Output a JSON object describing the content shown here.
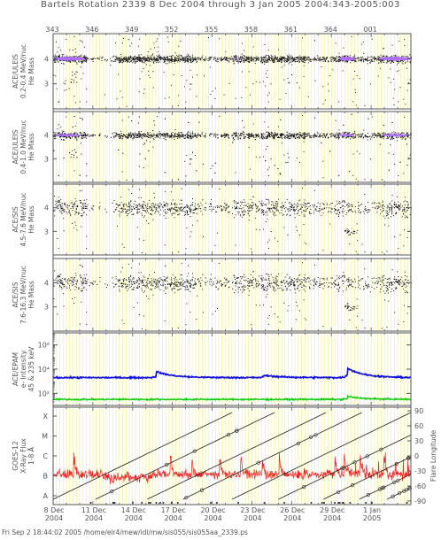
{
  "title": "Bartels Rotation 2339    8 Dec 2004 through 3 Jan 2005    2004:343-2005:003",
  "footer": "Fri Sep  2 18:44:02 2005    /home/elr4/mew/idl/mw/sis055/sis055aa_2339.ps",
  "doy_ticks": [
    "343",
    "346",
    "349",
    "352",
    "355",
    "358",
    "361",
    "364",
    "001"
  ],
  "date_ticks": [
    {
      "day": "8 Dec",
      "year": "2004"
    },
    {
      "day": "11 Dec",
      "year": "2004"
    },
    {
      "day": "14 Dec",
      "year": "2004"
    },
    {
      "day": "17 Dec",
      "year": "2004"
    },
    {
      "day": "20 Dec",
      "year": "2004"
    },
    {
      "day": "23 Dec",
      "year": "2004"
    },
    {
      "day": "26 Dec",
      "year": "2004"
    },
    {
      "day": "29 Dec",
      "year": "2004"
    },
    {
      "day": "1 Jan",
      "year": "2005"
    }
  ],
  "colors": {
    "axis": "#555555",
    "grid": "#eeee88",
    "dots": "#111111",
    "purple": "#b070ff",
    "blue": "#1010dd",
    "green": "#11cc11",
    "red": "#ee2222"
  },
  "chart_data": [
    {
      "type": "scatter",
      "ylabel": [
        "ACE/ULEIS",
        "0.2-0.4 MeV/nuc",
        "He Mass"
      ],
      "yticks": [
        "4",
        "3"
      ],
      "ylim": [
        2,
        5
      ],
      "xlim": [
        0,
        27
      ],
      "series": [
        {
          "values_description": "He mass points, dense band at mass 4 with purple high-density centre"
        }
      ]
    },
    {
      "type": "scatter",
      "ylabel": [
        "ACE/ULEIS",
        "0.4-1.0 MeV/nuc",
        "He Mass"
      ],
      "yticks": [
        "4",
        "3"
      ],
      "ylim": [
        2,
        5
      ],
      "xlim": [
        0,
        27
      ]
    },
    {
      "type": "scatter",
      "ylabel": [
        "ACE/SIS",
        "4.5-7.6 MeV/nuc",
        "He Mass"
      ],
      "yticks": [
        "4",
        "3"
      ],
      "ylim": [
        2,
        5
      ],
      "xlim": [
        0,
        27
      ]
    },
    {
      "type": "scatter",
      "ylabel": [
        "ACE/SIS",
        "7.6-16.3 MeV/nuc",
        "He Mass"
      ],
      "yticks": [
        "4",
        "3"
      ],
      "ylim": [
        2,
        5
      ],
      "xlim": [
        0,
        27
      ]
    },
    {
      "type": "line",
      "ylabel": [
        "ACE/EPAM",
        "e- Intensity",
        "45 & 235 keV"
      ],
      "yticks": [
        "10⁶",
        "10⁴",
        "10²"
      ],
      "ylim_log": [
        1,
        7
      ],
      "xlim": [
        0,
        27
      ],
      "series": [
        {
          "level_log": 3.3,
          "bumps": [
            [
              7.8,
              0.5
            ],
            [
              15.9,
              0.2
            ],
            [
              22.2,
              0.8
            ]
          ]
        },
        {
          "level_log": 1.5,
          "bumps": [
            [
              22.2,
              0.25
            ]
          ]
        }
      ]
    },
    {
      "type": "line",
      "ylabel": [
        "GOES-12",
        "X-Ray Flux",
        "1-8 Å"
      ],
      "yticks": [
        "X",
        "M",
        "C",
        "B",
        "A"
      ],
      "y2label": "Flare Longitude",
      "y2ticks": [
        "90",
        "60",
        "30",
        "0",
        "-30",
        "-60",
        "-90"
      ],
      "xlim": [
        0,
        27
      ],
      "series": [
        {
          "name": "X-Ray Flux 1-8 Å",
          "baseline_class": "B",
          "peaks_day": [
            1.6,
            8.9,
            10.5,
            12.6,
            14.2,
            15.8,
            17.1,
            21.3,
            22.0,
            23.2,
            25.0
          ]
        },
        {
          "name": "Flare Longitude tracks",
          "starts_day": [
            0.0,
            3.2,
            7.1,
            9.8,
            13.5,
            17.0,
            20.4,
            23.1,
            25.2
          ]
        }
      ]
    }
  ]
}
